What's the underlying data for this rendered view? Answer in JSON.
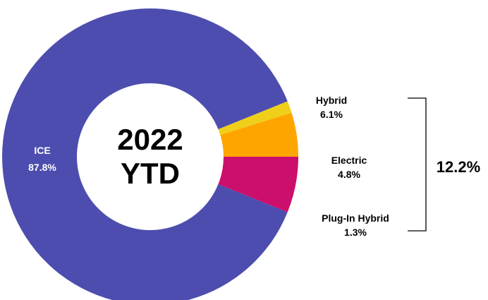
{
  "chart_data": {
    "type": "pie",
    "variant": "donut",
    "title": "",
    "center_label": [
      "2022",
      "YTD"
    ],
    "slices": [
      {
        "name": "ICE",
        "value": 87.8,
        "label": "87.8%",
        "color": "#4D4DAF"
      },
      {
        "name": "Hybrid",
        "value": 6.1,
        "label": "6.1%",
        "color": "#CC0F6C"
      },
      {
        "name": "Electric",
        "value": 4.8,
        "label": "4.8%",
        "color": "#FFA500"
      },
      {
        "name": "Plug-In Hybrid",
        "value": 1.3,
        "label": "1.3%",
        "color": "#F0CF1A"
      }
    ],
    "bracket": {
      "label": "12.2%",
      "covers": [
        "Hybrid",
        "Electric",
        "Plug-In Hybrid"
      ]
    },
    "legend": "none"
  }
}
